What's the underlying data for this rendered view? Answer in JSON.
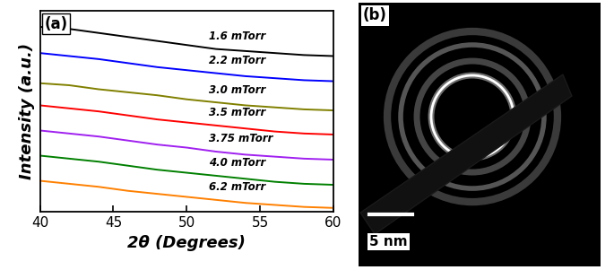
{
  "chart_data": [
    {
      "type": "line",
      "panel_label": "(a)",
      "x_label": "2θ (Degrees)",
      "y_label": "Intensity (a.u.)",
      "x": [
        40,
        42,
        44,
        46,
        48,
        50,
        52,
        54,
        56,
        58,
        60
      ],
      "series": [
        {
          "name": "1.6 mTorr",
          "color": "#000000",
          "values": [
            9.2,
            9.1,
            8.9,
            8.7,
            8.5,
            8.3,
            8.1,
            8.0,
            7.9,
            7.8,
            7.75
          ]
        },
        {
          "name": "2.2 mTorr",
          "color": "#0000ff",
          "values": [
            7.9,
            7.75,
            7.6,
            7.4,
            7.2,
            7.05,
            6.9,
            6.75,
            6.65,
            6.55,
            6.5
          ]
        },
        {
          "name": "3.0 mTorr",
          "color": "#808000",
          "values": [
            6.4,
            6.3,
            6.1,
            5.95,
            5.8,
            5.6,
            5.45,
            5.3,
            5.2,
            5.1,
            5.05
          ]
        },
        {
          "name": "3.5 mTorr",
          "color": "#ff0000",
          "values": [
            5.3,
            5.15,
            5.0,
            4.8,
            4.6,
            4.45,
            4.3,
            4.15,
            4.0,
            3.9,
            3.85
          ]
        },
        {
          "name": "3.75 mTorr",
          "color": "#a020f0",
          "values": [
            4.05,
            3.9,
            3.75,
            3.55,
            3.35,
            3.2,
            3.0,
            2.85,
            2.75,
            2.65,
            2.6
          ]
        },
        {
          "name": "4.0 mTorr",
          "color": "#008000",
          "values": [
            2.8,
            2.65,
            2.5,
            2.3,
            2.1,
            1.95,
            1.8,
            1.65,
            1.5,
            1.4,
            1.35
          ]
        },
        {
          "name": "6.2 mTorr",
          "color": "#ff8000",
          "values": [
            1.55,
            1.4,
            1.25,
            1.05,
            0.9,
            0.75,
            0.6,
            0.45,
            0.35,
            0.25,
            0.2
          ]
        }
      ],
      "xlim": [
        40,
        60
      ],
      "xticks": [
        40,
        45,
        50,
        55,
        60
      ],
      "ylim": [
        0,
        10
      ],
      "tick_labels": "x"
    },
    {
      "type": "diffraction_pattern",
      "panel_label": "(b)",
      "scale_bar_label": "5 nm"
    }
  ]
}
